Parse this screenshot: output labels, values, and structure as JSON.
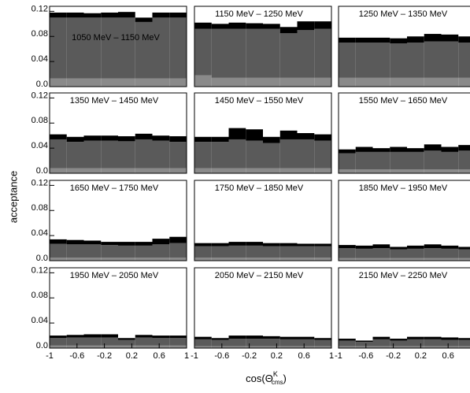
{
  "ylabel": "acceptance",
  "xlabel": {
    "text": "cos(Θ",
    "sup": "K",
    "sub": "cms",
    "close": ")"
  },
  "chart_data": [
    {
      "type": "histogram",
      "title": "1050 MeV – 1150 MeV",
      "bins": [
        -1,
        -0.75,
        -0.5,
        -0.25,
        0,
        0.25,
        0.5,
        0.75,
        1
      ],
      "xlim": [
        -1,
        1
      ],
      "ylim": [
        0,
        0.128
      ],
      "yticks": [
        {
          "value": 0,
          "label": "0.0"
        },
        0.04,
        0.08,
        0.12
      ],
      "series": [
        {
          "color": "#8a8a8a",
          "values": [
            0.013,
            0.013,
            0.013,
            0.013,
            0.013,
            0.013,
            0.013,
            0.013
          ]
        },
        {
          "color": "#5a5a5a",
          "values": [
            0.097,
            0.097,
            0.097,
            0.097,
            0.097,
            0.09,
            0.097,
            0.097
          ]
        },
        {
          "color": "#000000",
          "values": [
            0.008,
            0.008,
            0.007,
            0.008,
            0.009,
            0.007,
            0.008,
            0.008
          ]
        }
      ]
    },
    {
      "type": "histogram",
      "title": "1150 MeV – 1250 MeV",
      "bins": [
        -1,
        -0.75,
        -0.5,
        -0.25,
        0,
        0.25,
        0.5,
        0.75,
        1
      ],
      "xlim": [
        -1,
        1
      ],
      "ylim": [
        0,
        0.128
      ],
      "series": [
        {
          "color": "#8a8a8a",
          "values": [
            0.018,
            0.014,
            0.014,
            0.014,
            0.014,
            0.014,
            0.014,
            0.014
          ]
        },
        {
          "color": "#5a5a5a",
          "values": [
            0.074,
            0.078,
            0.078,
            0.078,
            0.078,
            0.071,
            0.076,
            0.078
          ]
        },
        {
          "color": "#000000",
          "values": [
            0.01,
            0.008,
            0.01,
            0.009,
            0.008,
            0.01,
            0.014,
            0.012
          ]
        }
      ]
    },
    {
      "type": "histogram",
      "title": "1250 MeV – 1350 MeV",
      "bins": [
        -1,
        -0.75,
        -0.5,
        -0.25,
        0,
        0.25,
        0.5,
        0.75,
        1
      ],
      "xlim": [
        -1,
        1
      ],
      "ylim": [
        0,
        0.128
      ],
      "series": [
        {
          "color": "#8a8a8a",
          "values": [
            0.014,
            0.014,
            0.014,
            0.014,
            0.014,
            0.014,
            0.014,
            0.014
          ]
        },
        {
          "color": "#5a5a5a",
          "values": [
            0.056,
            0.056,
            0.056,
            0.055,
            0.056,
            0.058,
            0.058,
            0.056
          ]
        },
        {
          "color": "#000000",
          "values": [
            0.008,
            0.008,
            0.008,
            0.008,
            0.01,
            0.012,
            0.011,
            0.01
          ]
        }
      ]
    },
    {
      "type": "histogram",
      "title": "1350 MeV – 1450 MeV",
      "bins": [
        -1,
        -0.75,
        -0.5,
        -0.25,
        0,
        0.25,
        0.5,
        0.75,
        1
      ],
      "xlim": [
        -1,
        1
      ],
      "ylim": [
        0,
        0.128
      ],
      "yticks": [
        {
          "value": 0,
          "label": "0.0"
        },
        0.04,
        0.08,
        0.12
      ],
      "series": [
        {
          "color": "#8a8a8a",
          "values": [
            0.008,
            0.008,
            0.008,
            0.008,
            0.008,
            0.008,
            0.008,
            0.008
          ]
        },
        {
          "color": "#5a5a5a",
          "values": [
            0.046,
            0.042,
            0.044,
            0.044,
            0.043,
            0.046,
            0.044,
            0.042
          ]
        },
        {
          "color": "#000000",
          "values": [
            0.008,
            0.008,
            0.008,
            0.008,
            0.008,
            0.009,
            0.008,
            0.009
          ]
        }
      ]
    },
    {
      "type": "histogram",
      "title": "1450 MeV – 1550 MeV",
      "bins": [
        -1,
        -0.75,
        -0.5,
        -0.25,
        0,
        0.25,
        0.5,
        0.75,
        1
      ],
      "xlim": [
        -1,
        1
      ],
      "ylim": [
        0,
        0.128
      ],
      "series": [
        {
          "color": "#8a8a8a",
          "values": [
            0.008,
            0.008,
            0.008,
            0.008,
            0.008,
            0.008,
            0.008,
            0.008
          ]
        },
        {
          "color": "#5a5a5a",
          "values": [
            0.042,
            0.042,
            0.046,
            0.044,
            0.04,
            0.046,
            0.046,
            0.044
          ]
        },
        {
          "color": "#000000",
          "values": [
            0.008,
            0.008,
            0.018,
            0.018,
            0.01,
            0.014,
            0.01,
            0.01
          ]
        }
      ]
    },
    {
      "type": "histogram",
      "title": "1550 MeV – 1650 MeV",
      "bins": [
        -1,
        -0.75,
        -0.5,
        -0.25,
        0,
        0.25,
        0.5,
        0.75,
        1
      ],
      "xlim": [
        -1,
        1
      ],
      "ylim": [
        0,
        0.128
      ],
      "series": [
        {
          "color": "#8a8a8a",
          "values": [
            0.006,
            0.006,
            0.006,
            0.006,
            0.006,
            0.006,
            0.006,
            0.006
          ]
        },
        {
          "color": "#5a5a5a",
          "values": [
            0.026,
            0.028,
            0.028,
            0.028,
            0.028,
            0.03,
            0.028,
            0.03
          ]
        },
        {
          "color": "#000000",
          "values": [
            0.006,
            0.008,
            0.006,
            0.008,
            0.006,
            0.01,
            0.008,
            0.009
          ]
        }
      ]
    },
    {
      "type": "histogram",
      "title": "1650 MeV – 1750 MeV",
      "bins": [
        -1,
        -0.75,
        -0.5,
        -0.25,
        0,
        0.25,
        0.5,
        0.75,
        1
      ],
      "xlim": [
        -1,
        1
      ],
      "ylim": [
        0,
        0.128
      ],
      "yticks": [
        {
          "value": 0,
          "label": "0.0"
        },
        0.04,
        0.08,
        0.12
      ],
      "series": [
        {
          "color": "#8a8a8a",
          "values": [
            0.005,
            0.005,
            0.005,
            0.005,
            0.005,
            0.005,
            0.005,
            0.005
          ]
        },
        {
          "color": "#5a5a5a",
          "values": [
            0.022,
            0.021,
            0.021,
            0.02,
            0.019,
            0.019,
            0.021,
            0.023
          ]
        },
        {
          "color": "#000000",
          "values": [
            0.007,
            0.007,
            0.006,
            0.005,
            0.006,
            0.006,
            0.009,
            0.01
          ]
        }
      ]
    },
    {
      "type": "histogram",
      "title": "1750 MeV – 1850 MeV",
      "bins": [
        -1,
        -0.75,
        -0.5,
        -0.25,
        0,
        0.25,
        0.5,
        0.75,
        1
      ],
      "xlim": [
        -1,
        1
      ],
      "ylim": [
        0,
        0.128
      ],
      "series": [
        {
          "color": "#8a8a8a",
          "values": [
            0.005,
            0.005,
            0.005,
            0.005,
            0.005,
            0.005,
            0.005,
            0.005
          ]
        },
        {
          "color": "#5a5a5a",
          "values": [
            0.018,
            0.018,
            0.019,
            0.019,
            0.018,
            0.018,
            0.018,
            0.018
          ]
        },
        {
          "color": "#000000",
          "values": [
            0.005,
            0.005,
            0.006,
            0.006,
            0.005,
            0.005,
            0.004,
            0.004
          ]
        }
      ]
    },
    {
      "type": "histogram",
      "title": "1850 MeV – 1950 MeV",
      "bins": [
        -1,
        -0.75,
        -0.5,
        -0.25,
        0,
        0.25,
        0.5,
        0.75,
        1
      ],
      "xlim": [
        -1,
        1
      ],
      "ylim": [
        0,
        0.128
      ],
      "series": [
        {
          "color": "#8a8a8a",
          "values": [
            0.004,
            0.004,
            0.004,
            0.004,
            0.004,
            0.004,
            0.004,
            0.004
          ]
        },
        {
          "color": "#5a5a5a",
          "values": [
            0.016,
            0.015,
            0.016,
            0.014,
            0.015,
            0.016,
            0.015,
            0.014
          ]
        },
        {
          "color": "#000000",
          "values": [
            0.005,
            0.005,
            0.006,
            0.004,
            0.005,
            0.006,
            0.005,
            0.004
          ]
        }
      ]
    },
    {
      "type": "histogram",
      "title": "1950 MeV – 2050 MeV",
      "bins": [
        -1,
        -0.75,
        -0.5,
        -0.25,
        0,
        0.25,
        0.5,
        0.75,
        1
      ],
      "xlim": [
        -1,
        1
      ],
      "ylim": [
        0,
        0.128
      ],
      "yticks": [
        {
          "value": 0,
          "label": "0.0"
        },
        0.04,
        0.08,
        0.12
      ],
      "xticks": [
        -1,
        -0.6,
        -0.2,
        0.2,
        0.6,
        1
      ],
      "series": [
        {
          "color": "#8a8a8a",
          "values": [
            0.004,
            0.004,
            0.004,
            0.004,
            0.004,
            0.004,
            0.004,
            0.004
          ]
        },
        {
          "color": "#5a5a5a",
          "values": [
            0.012,
            0.013,
            0.013,
            0.013,
            0.009,
            0.013,
            0.012,
            0.012
          ]
        },
        {
          "color": "#000000",
          "values": [
            0.004,
            0.004,
            0.005,
            0.005,
            0.003,
            0.004,
            0.004,
            0.004
          ]
        }
      ]
    },
    {
      "type": "histogram",
      "title": "2050 MeV – 2150 MeV",
      "bins": [
        -1,
        -0.75,
        -0.5,
        -0.25,
        0,
        0.25,
        0.5,
        0.75,
        1
      ],
      "xlim": [
        -1,
        1
      ],
      "ylim": [
        0,
        0.128
      ],
      "xticks": [
        -1,
        -0.6,
        -0.2,
        0.2,
        0.6,
        1
      ],
      "series": [
        {
          "color": "#8a8a8a",
          "values": [
            0.003,
            0.003,
            0.003,
            0.003,
            0.003,
            0.003,
            0.003,
            0.003
          ]
        },
        {
          "color": "#5a5a5a",
          "values": [
            0.011,
            0.01,
            0.012,
            0.012,
            0.012,
            0.011,
            0.011,
            0.01
          ]
        },
        {
          "color": "#000000",
          "values": [
            0.004,
            0.003,
            0.005,
            0.005,
            0.004,
            0.004,
            0.004,
            0.003
          ]
        }
      ]
    },
    {
      "type": "histogram",
      "title": "2150 MeV – 2250 MeV",
      "bins": [
        -1,
        -0.75,
        -0.5,
        -0.25,
        0,
        0.25,
        0.5,
        0.75,
        1
      ],
      "xlim": [
        -1,
        1
      ],
      "ylim": [
        0,
        0.128
      ],
      "xticks": [
        -1,
        -0.6,
        -0.2,
        0.2,
        0.6
      ],
      "series": [
        {
          "color": "#8a8a8a",
          "values": [
            0.003,
            0.003,
            0.003,
            0.003,
            0.003,
            0.003,
            0.003,
            0.003
          ]
        },
        {
          "color": "#5a5a5a",
          "values": [
            0.009,
            0.007,
            0.011,
            0.009,
            0.011,
            0.011,
            0.01,
            0.01
          ]
        },
        {
          "color": "#000000",
          "values": [
            0.003,
            0.002,
            0.004,
            0.003,
            0.004,
            0.004,
            0.004,
            0.003
          ]
        }
      ]
    }
  ]
}
